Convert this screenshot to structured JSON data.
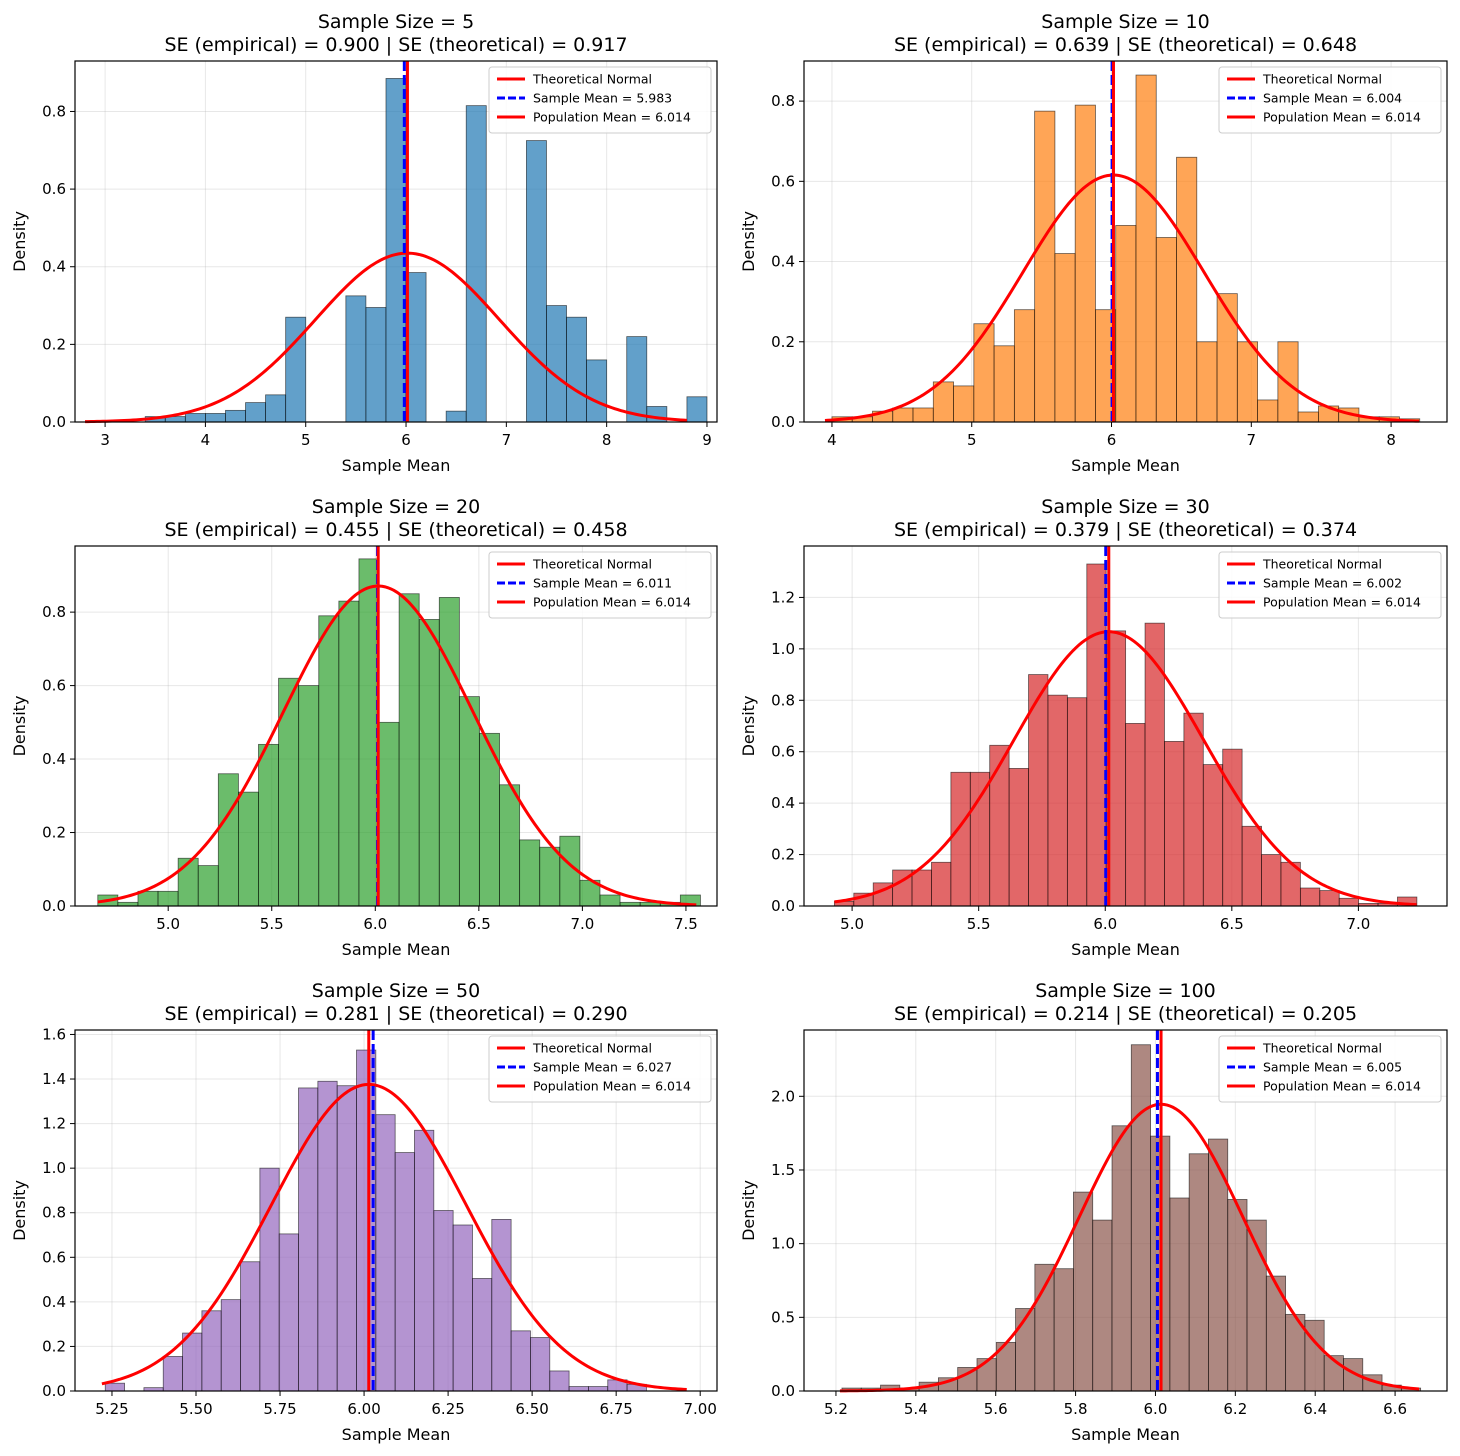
{
  "chart_data": [
    {
      "type": "bar",
      "title": "Sample Size = 5",
      "subtitle": "SE (empirical) = 0.900 | SE (theoretical) = 0.917",
      "xlabel": "Sample Mean",
      "ylabel": "Density",
      "xlim": [
        2.7,
        9.1
      ],
      "ylim": [
        0,
        0.93
      ],
      "xticks": [
        3,
        4,
        5,
        6,
        7,
        8,
        9
      ],
      "xtick_labels": [
        "3",
        "4",
        "5",
        "6",
        "7",
        "8",
        "9"
      ],
      "yticks": [
        0.0,
        0.2,
        0.4,
        0.6,
        0.8
      ],
      "ytick_labels": [
        "0.0",
        "0.2",
        "0.4",
        "0.6",
        "0.8"
      ],
      "grid": true,
      "bar_color": "#1f77b4",
      "bin_start": 3.4,
      "bin_width": 0.2,
      "values": [
        0.014,
        0.014,
        0.022,
        0.022,
        0.03,
        0.05,
        0.07,
        0.27,
        0,
        0,
        0.325,
        0.295,
        0.885,
        0.385,
        0,
        0.028,
        0.815,
        0,
        0,
        0.725,
        0.3,
        0.27,
        0.16,
        0,
        0.22,
        0.04,
        0,
        0.065,
        0,
        0
      ],
      "series": [
        {
          "name": "Theoretical Normal",
          "kind": "normal-curve",
          "mean": 6.014,
          "sd": 0.917,
          "x_range": [
            2.8,
            8.8
          ],
          "color": "#ff0000"
        },
        {
          "name": "Sample Mean = 5.983",
          "kind": "vline",
          "x": 5.983,
          "color": "#0000ff",
          "dashed": true
        },
        {
          "name": "Population Mean = 6.014",
          "kind": "vline",
          "x": 6.014,
          "color": "#ff0000",
          "dashed": false
        }
      ],
      "legend_position": "upper right"
    },
    {
      "type": "bar",
      "title": "Sample Size = 10",
      "subtitle": "SE (empirical) = 0.639 | SE (theoretical) = 0.648",
      "xlabel": "Sample Mean",
      "ylabel": "Density",
      "xlim": [
        3.8,
        8.4
      ],
      "ylim": [
        0,
        0.9
      ],
      "xticks": [
        4,
        5,
        6,
        7,
        8
      ],
      "xtick_labels": [
        "4",
        "5",
        "6",
        "7",
        "8"
      ],
      "yticks": [
        0.0,
        0.2,
        0.4,
        0.6,
        0.8
      ],
      "ytick_labels": [
        "0.0",
        "0.2",
        "0.4",
        "0.6",
        "0.8"
      ],
      "grid": true,
      "bar_color": "#ff7f0e",
      "bin_start": 4.0,
      "bin_width": 0.145,
      "values": [
        0.013,
        0.013,
        0.027,
        0.035,
        0.035,
        0.1,
        0.09,
        0.245,
        0.19,
        0.28,
        0.775,
        0.42,
        0.79,
        0.28,
        0.49,
        0.865,
        0.46,
        0.66,
        0.2,
        0.32,
        0.2,
        0.055,
        0.2,
        0.025,
        0.04,
        0.035,
        0.013,
        0.013,
        0.008
      ],
      "series": [
        {
          "name": "Theoretical Normal",
          "kind": "normal-curve",
          "mean": 6.014,
          "sd": 0.648,
          "x_range": [
            3.95,
            8.2
          ],
          "color": "#ff0000"
        },
        {
          "name": "Sample Mean = 6.004",
          "kind": "vline",
          "x": 6.004,
          "color": "#0000ff",
          "dashed": true
        },
        {
          "name": "Population Mean = 6.014",
          "kind": "vline",
          "x": 6.014,
          "color": "#ff0000",
          "dashed": false
        }
      ],
      "legend_position": "upper right"
    },
    {
      "type": "bar",
      "title": "Sample Size = 20",
      "subtitle": "SE (empirical) = 0.455 | SE (theoretical) = 0.458",
      "xlabel": "Sample Mean",
      "ylabel": "Density",
      "xlim": [
        4.55,
        7.65
      ],
      "ylim": [
        0,
        0.98
      ],
      "xticks": [
        5.0,
        5.5,
        6.0,
        6.5,
        7.0,
        7.5
      ],
      "xtick_labels": [
        "5.0",
        "5.5",
        "6.0",
        "6.5",
        "7.0",
        "7.5"
      ],
      "yticks": [
        0.0,
        0.2,
        0.4,
        0.6,
        0.8
      ],
      "ytick_labels": [
        "0.0",
        "0.2",
        "0.4",
        "0.6",
        "0.8"
      ],
      "grid": true,
      "bar_color": "#2ca02c",
      "bin_start": 4.66,
      "bin_width": 0.097,
      "values": [
        0.03,
        0.01,
        0.04,
        0.04,
        0.13,
        0.11,
        0.36,
        0.31,
        0.44,
        0.62,
        0.6,
        0.79,
        0.83,
        0.945,
        0.5,
        0.85,
        0.78,
        0.84,
        0.57,
        0.47,
        0.33,
        0.18,
        0.16,
        0.19,
        0.07,
        0.03,
        0.01,
        0.01,
        0.01,
        0.03
      ],
      "series": [
        {
          "name": "Theoretical Normal",
          "kind": "normal-curve",
          "mean": 6.014,
          "sd": 0.458,
          "x_range": [
            4.66,
            7.55
          ],
          "color": "#ff0000"
        },
        {
          "name": "Sample Mean = 6.011",
          "kind": "vline",
          "x": 6.011,
          "color": "#0000ff",
          "dashed": true
        },
        {
          "name": "Population Mean = 6.014",
          "kind": "vline",
          "x": 6.014,
          "color": "#ff0000",
          "dashed": false
        }
      ],
      "legend_position": "upper right"
    },
    {
      "type": "bar",
      "title": "Sample Size = 30",
      "subtitle": "SE (empirical) = 0.379 | SE (theoretical) = 0.374",
      "xlabel": "Sample Mean",
      "ylabel": "Density",
      "xlim": [
        4.81,
        7.35
      ],
      "ylim": [
        0,
        1.4
      ],
      "xticks": [
        5.0,
        5.5,
        6.0,
        6.5,
        7.0
      ],
      "xtick_labels": [
        "5.0",
        "5.5",
        "6.0",
        "6.5",
        "7.0"
      ],
      "yticks": [
        0.0,
        0.2,
        0.4,
        0.6,
        0.8,
        1.0,
        1.2
      ],
      "ytick_labels": [
        "0.0",
        "0.2",
        "0.4",
        "0.6",
        "0.8",
        "1.0",
        "1.2"
      ],
      "grid": true,
      "bar_color": "#d62728",
      "bin_start": 4.93,
      "bin_width": 0.0767,
      "values": [
        0.018,
        0.05,
        0.09,
        0.14,
        0.14,
        0.17,
        0.52,
        0.52,
        0.625,
        0.535,
        0.9,
        0.82,
        0.81,
        1.33,
        1.07,
        0.71,
        1.1,
        0.64,
        0.75,
        0.55,
        0.61,
        0.31,
        0.2,
        0.17,
        0.07,
        0.06,
        0.03,
        0.01,
        0.01,
        0.035
      ],
      "series": [
        {
          "name": "Theoretical Normal",
          "kind": "normal-curve",
          "mean": 6.014,
          "sd": 0.374,
          "x_range": [
            4.93,
            7.23
          ],
          "color": "#ff0000"
        },
        {
          "name": "Sample Mean = 6.002",
          "kind": "vline",
          "x": 6.002,
          "color": "#0000ff",
          "dashed": true
        },
        {
          "name": "Population Mean = 6.014",
          "kind": "vline",
          "x": 6.014,
          "color": "#ff0000",
          "dashed": false
        }
      ],
      "legend_position": "upper right"
    },
    {
      "type": "bar",
      "title": "Sample Size = 50",
      "subtitle": "SE (empirical) = 0.281 | SE (theoretical) = 0.290",
      "xlabel": "Sample Mean",
      "ylabel": "Density",
      "xlim": [
        5.14,
        7.05
      ],
      "ylim": [
        0,
        1.62
      ],
      "xticks": [
        5.25,
        5.5,
        5.75,
        6.0,
        6.25,
        6.5,
        6.75,
        7.0
      ],
      "xtick_labels": [
        "5.25",
        "5.50",
        "5.75",
        "6.00",
        "6.25",
        "6.50",
        "6.75",
        "7.00"
      ],
      "yticks": [
        0.0,
        0.2,
        0.4,
        0.6,
        0.8,
        1.0,
        1.2,
        1.4,
        1.6
      ],
      "ytick_labels": [
        "0.0",
        "0.2",
        "0.4",
        "0.6",
        "0.8",
        "1.0",
        "1.2",
        "1.4",
        "1.6"
      ],
      "grid": true,
      "bar_color": "#9467bd",
      "bin_start": 5.23,
      "bin_width": 0.0575,
      "values": [
        0.035,
        0,
        0.015,
        0.155,
        0.26,
        0.36,
        0.41,
        0.58,
        1.0,
        0.705,
        1.36,
        1.39,
        1.37,
        1.53,
        1.24,
        1.07,
        1.17,
        0.81,
        0.745,
        0.505,
        0.77,
        0.27,
        0.24,
        0.09,
        0.02,
        0.02,
        0.05,
        0.03,
        0,
        0
      ],
      "series": [
        {
          "name": "Theoretical Normal",
          "kind": "normal-curve",
          "mean": 6.014,
          "sd": 0.29,
          "x_range": [
            5.22,
            6.96
          ],
          "color": "#ff0000"
        },
        {
          "name": "Sample Mean = 6.027",
          "kind": "vline",
          "x": 6.027,
          "color": "#0000ff",
          "dashed": true
        },
        {
          "name": "Population Mean = 6.014",
          "kind": "vline",
          "x": 6.014,
          "color": "#ff0000",
          "dashed": false
        }
      ],
      "legend_position": "upper right"
    },
    {
      "type": "bar",
      "title": "Sample Size = 100",
      "subtitle": "SE (empirical) = 0.214 | SE (theoretical) = 0.205",
      "xlabel": "Sample Mean",
      "ylabel": "Density",
      "xlim": [
        5.12,
        6.73
      ],
      "ylim": [
        0,
        2.45
      ],
      "xticks": [
        5.2,
        5.4,
        5.6,
        5.8,
        6.0,
        6.2,
        6.4,
        6.6
      ],
      "xtick_labels": [
        "5.2",
        "5.4",
        "5.6",
        "5.8",
        "6.0",
        "6.2",
        "6.4",
        "6.6"
      ],
      "yticks": [
        0.0,
        0.5,
        1.0,
        1.5,
        2.0
      ],
      "ytick_labels": [
        "0.0",
        "0.5",
        "1.0",
        "1.5",
        "2.0"
      ],
      "grid": true,
      "bar_color": "#8c564b",
      "bin_start": 5.215,
      "bin_width": 0.0483,
      "values": [
        0.02,
        0.02,
        0.04,
        0.02,
        0.06,
        0.09,
        0.16,
        0.22,
        0.33,
        0.56,
        0.86,
        0.83,
        1.35,
        1.16,
        1.8,
        2.35,
        1.73,
        1.31,
        1.61,
        1.71,
        1.3,
        1.16,
        0.78,
        0.52,
        0.48,
        0.24,
        0.22,
        0.11,
        0.04,
        0.02
      ],
      "series": [
        {
          "name": "Theoretical Normal",
          "kind": "normal-curve",
          "mean": 6.014,
          "sd": 0.205,
          "x_range": [
            5.21,
            6.66
          ],
          "color": "#ff0000"
        },
        {
          "name": "Sample Mean = 6.005",
          "kind": "vline",
          "x": 6.005,
          "color": "#0000ff",
          "dashed": true
        },
        {
          "name": "Population Mean = 6.014",
          "kind": "vline",
          "x": 6.014,
          "color": "#ff0000",
          "dashed": false
        }
      ],
      "legend_position": "upper right"
    }
  ]
}
